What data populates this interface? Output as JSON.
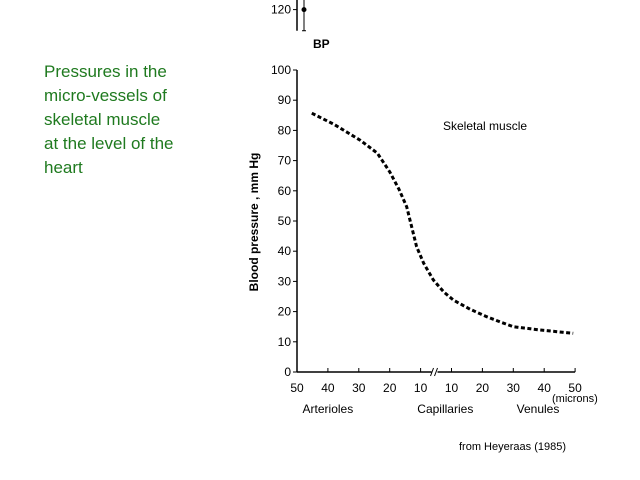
{
  "slide": {
    "title_lines": [
      "Pressures in the",
      "micro-vessels of",
      "skeletal muscle",
      "at the level of the",
      "heart"
    ],
    "source": "from Heyeraas (1985)",
    "title_color": "#1f7a1f"
  },
  "chart_data": {
    "type": "line",
    "title": "Skeletal muscle",
    "ylabel": "Blood pressure , mm Hg",
    "xlabel_unit": "(microns)",
    "ylim": [
      0,
      100
    ],
    "yticks": [
      0,
      10,
      20,
      30,
      40,
      50,
      60,
      70,
      80,
      90,
      100
    ],
    "bp_marker": {
      "label": "BP",
      "value": 120,
      "error_low": 113,
      "error_high": 127,
      "tick": 120
    },
    "x_tick_labels": [
      "50",
      "40",
      "30",
      "20",
      "10",
      "10",
      "20",
      "30",
      "40",
      "50"
    ],
    "x_tick_positions": [
      0,
      1,
      2,
      3,
      4,
      5,
      6,
      7,
      8,
      9
    ],
    "x_break_position": 4.45,
    "x_groups": [
      {
        "label": "Arterioles",
        "center": 1
      },
      {
        "label": "Capillaries",
        "center": 4.8
      },
      {
        "label": "Venules",
        "center": 7.8
      }
    ],
    "series": [
      {
        "name": "Skeletal muscle",
        "style": "dashed",
        "x": [
          0.48,
          1.2,
          2.04,
          2.6,
          3.0,
          3.3,
          3.55,
          3.87,
          4.1,
          4.41,
          4.75,
          5.06,
          5.6,
          6.14,
          6.6,
          7.0,
          7.87,
          8.94
        ],
        "y": [
          85.7,
          82,
          76.8,
          72.5,
          66.3,
          60.5,
          54.7,
          41.5,
          36,
          30.5,
          26.5,
          23.8,
          20.8,
          18.3,
          16.5,
          15,
          13.9,
          12.8
        ]
      }
    ]
  }
}
